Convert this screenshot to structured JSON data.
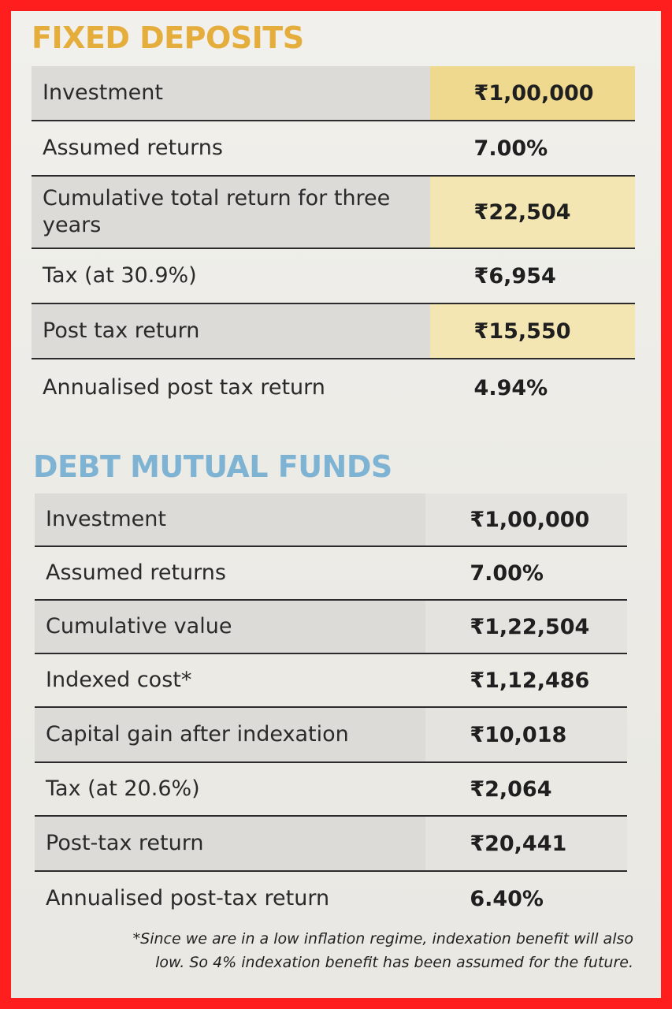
{
  "fixed_deposits": {
    "title": "FIXED DEPOSITS",
    "rows": [
      {
        "label": "Investment",
        "value": "₹1,00,000"
      },
      {
        "label": "Assumed returns",
        "value": "7.00%"
      },
      {
        "label": "Cumulative total return for three years",
        "value": "₹22,504"
      },
      {
        "label": "Tax (at 30.9%)",
        "value": "₹6,954"
      },
      {
        "label": "Post tax return",
        "value": "₹15,550"
      },
      {
        "label": "Annualised post tax return",
        "value": "4.94%"
      }
    ]
  },
  "debt_mutual_funds": {
    "title": "DEBT MUTUAL FUNDS",
    "rows": [
      {
        "label": "Investment",
        "value": "₹1,00,000"
      },
      {
        "label": "Assumed returns",
        "value": "7.00%"
      },
      {
        "label": "Cumulative value",
        "value": "₹1,22,504"
      },
      {
        "label": "Indexed cost*",
        "value": "₹1,12,486"
      },
      {
        "label": "Capital gain after indexation",
        "value": "₹10,018"
      },
      {
        "label": "Tax (at 20.6%)",
        "value": "₹2,064"
      },
      {
        "label": "Post-tax return",
        "value": "₹20,441"
      },
      {
        "label": "Annualised post-tax return",
        "value": "6.40%"
      }
    ]
  },
  "footnote": {
    "line1": "*Since we are in a low inflation regime, indexation benefit will also",
    "line2": "low. So 4% indexation benefit has been assumed for the future."
  },
  "colors": {
    "border": "#ff1e1e",
    "fd_title": "#e5ad3b",
    "dmf_title": "#7fb3d3",
    "highlight": "#f3e6b2"
  }
}
